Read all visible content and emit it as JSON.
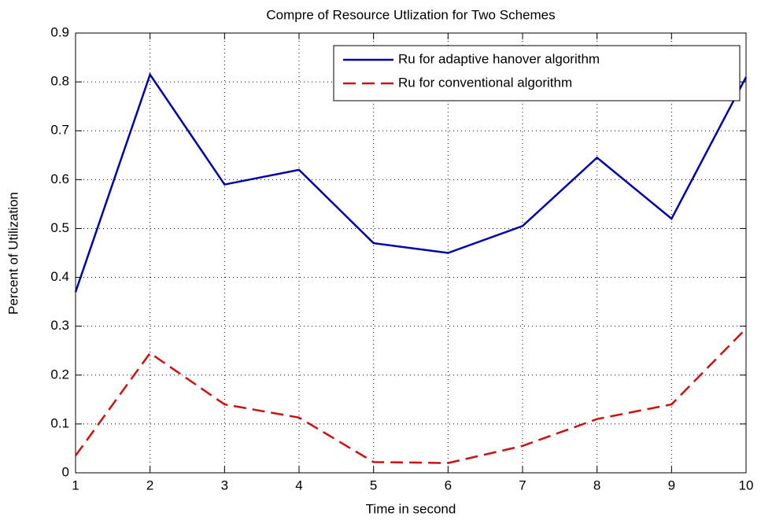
{
  "chart_data": {
    "type": "line",
    "title": "Compre of Resource Utlization for Two Schemes",
    "xlabel": "Time in second",
    "ylabel": "Percent of Utilization",
    "x": [
      1,
      2,
      3,
      4,
      5,
      6,
      7,
      8,
      9,
      10
    ],
    "series": [
      {
        "name": "Ru for adaptive hanover algorithm",
        "color": "#0000aa",
        "dash": "solid",
        "values": [
          0.37,
          0.815,
          0.59,
          0.62,
          0.47,
          0.45,
          0.505,
          0.645,
          0.52,
          0.81
        ]
      },
      {
        "name": "Ru for conventional algorithm",
        "color": "#cc1111",
        "dash": "dashed",
        "values": [
          0.035,
          0.245,
          0.14,
          0.113,
          0.022,
          0.02,
          0.055,
          0.11,
          0.14,
          0.295
        ]
      }
    ],
    "xlim": [
      1,
      10
    ],
    "xticks": [
      1,
      2,
      3,
      4,
      5,
      6,
      7,
      8,
      9,
      10
    ],
    "ylim": [
      0,
      0.9
    ],
    "yticks": [
      0,
      0.1,
      0.2,
      0.3,
      0.4,
      0.5,
      0.6,
      0.7,
      0.8,
      0.9
    ],
    "grid": true,
    "legend": "northeast"
  }
}
